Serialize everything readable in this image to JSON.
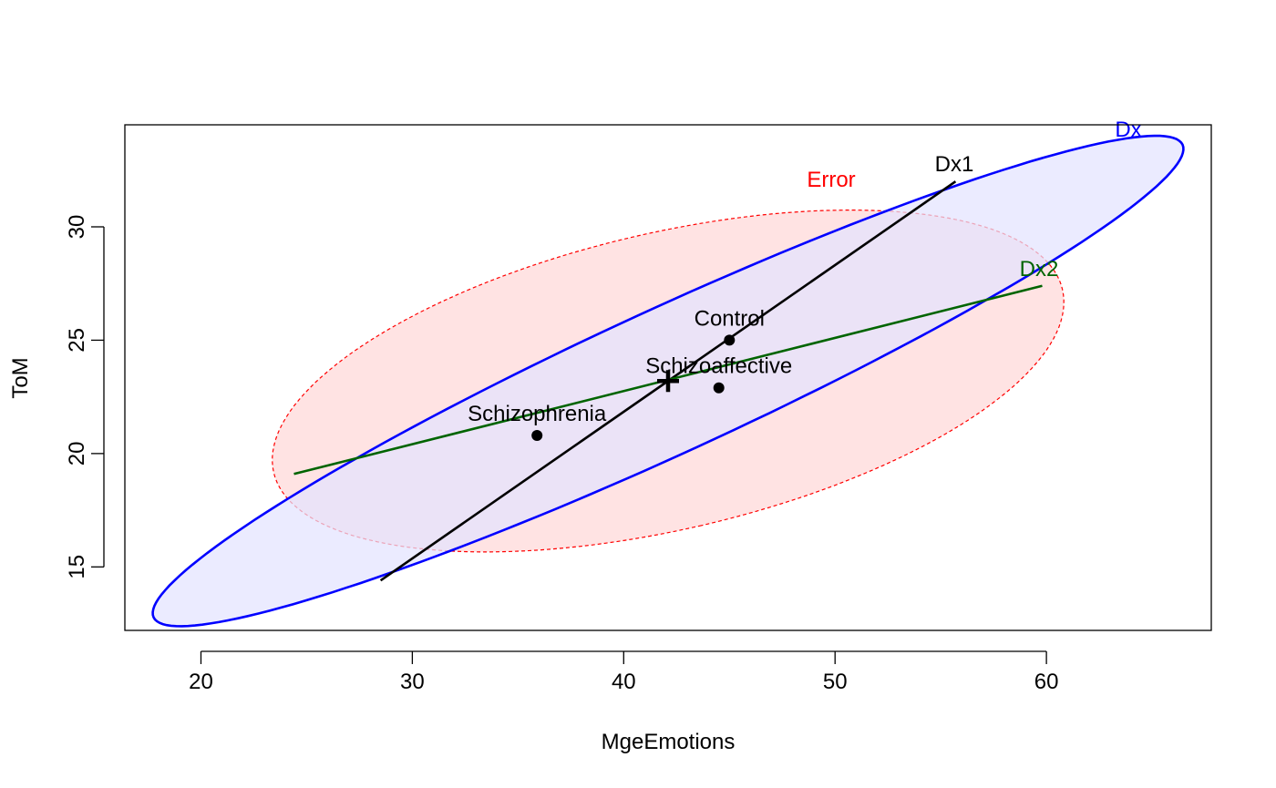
{
  "chart_data": {
    "type": "scatter",
    "title": "",
    "xlabel": "MgeEmotions",
    "ylabel": "ToM",
    "xlim": [
      16.4,
      67.8
    ],
    "ylim": [
      12.2,
      34.5
    ],
    "x_ticks": [
      20,
      30,
      40,
      50,
      60
    ],
    "y_ticks": [
      15,
      20,
      25,
      30
    ],
    "grid": false,
    "legend": "none",
    "groups": [
      {
        "name": "Control",
        "x": 45.0,
        "y": 25.0
      },
      {
        "name": "Schizoaffective",
        "x": 44.5,
        "y": 22.9
      },
      {
        "name": "Schizophrenia",
        "x": 35.9,
        "y": 20.8
      }
    ],
    "grand_mean": {
      "x": 42.1,
      "y": 23.2
    },
    "ellipses": [
      {
        "name": "Error",
        "color": "#ff0000",
        "fill": "#ffe3e3",
        "dashed": true,
        "center": [
          42.1,
          23.2
        ],
        "points": [
          [
            61.0,
            26.8
          ],
          [
            58.4,
            29.3
          ],
          [
            50.6,
            30.7
          ],
          [
            41.2,
            29.9
          ],
          [
            32.6,
            26.9
          ],
          [
            24.8,
            22.8
          ],
          [
            23.2,
            19.6
          ],
          [
            25.8,
            17.1
          ],
          [
            33.6,
            15.7
          ],
          [
            43.0,
            16.5
          ],
          [
            51.6,
            19.5
          ],
          [
            59.4,
            23.6
          ]
        ]
      },
      {
        "name": "Dx",
        "color": "#0000ff",
        "fill": "#e3e3ff",
        "dashed": false,
        "center": [
          42.1,
          23.2
        ],
        "points": [
          [
            65.3,
            32.9
          ],
          [
            60.5,
            33.4
          ],
          [
            51.5,
            30.4
          ],
          [
            41.1,
            26.0
          ],
          [
            30.6,
            21.6
          ],
          [
            21.6,
            16.6
          ],
          [
            18.9,
            13.5
          ],
          [
            23.7,
            13.0
          ],
          [
            32.7,
            16.0
          ],
          [
            43.1,
            20.4
          ],
          [
            53.6,
            24.8
          ],
          [
            62.6,
            29.8
          ]
        ]
      }
    ],
    "axes_lines": [
      {
        "name": "Dx1",
        "color": "#000000",
        "from": [
          28.5,
          14.4
        ],
        "to": [
          55.7,
          32.0
        ]
      },
      {
        "name": "Dx2",
        "color": "#006400",
        "from": [
          24.4,
          19.1
        ],
        "to": [
          59.8,
          27.4
        ]
      }
    ]
  }
}
